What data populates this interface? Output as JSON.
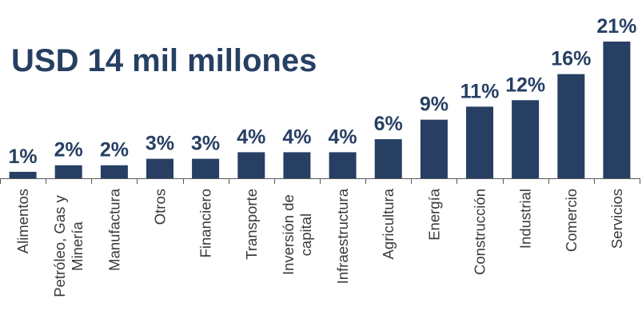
{
  "colors": {
    "bar": "#263f63",
    "title": "#263f63",
    "value_label": "#263f63",
    "axis": "#595959",
    "category_label": "#3a3a3a"
  },
  "chart_data": {
    "type": "bar",
    "title": "USD 14 mil millones",
    "xlabel": "",
    "ylabel": "",
    "ylim": [
      0,
      21
    ],
    "grid": false,
    "legend": "none",
    "categories": [
      "Alimentos",
      "Petróleo, Gas y Minería",
      "Manufactura",
      "Otros",
      "Financiero",
      "Transporte",
      "Inversión de capital",
      "Infraestructura",
      "Agricultura",
      "Energía",
      "Construcción",
      "Industrial",
      "Comercio",
      "Servicios"
    ],
    "category_lines": [
      [
        "Alimentos"
      ],
      [
        "Petróleo, Gas y",
        "Minería"
      ],
      [
        "Manufactura"
      ],
      [
        "Otros"
      ],
      [
        "Financiero"
      ],
      [
        "Transporte"
      ],
      [
        "Inversión de",
        "capital"
      ],
      [
        "Infraestructura"
      ],
      [
        "Agricultura"
      ],
      [
        "Energía"
      ],
      [
        "Construcción"
      ],
      [
        "Industrial"
      ],
      [
        "Comercio"
      ],
      [
        "Servicios"
      ]
    ],
    "values": [
      1,
      2,
      2,
      3,
      3,
      4,
      4,
      4,
      6,
      9,
      11,
      12,
      16,
      21
    ],
    "value_labels": [
      "1%",
      "2%",
      "2%",
      "3%",
      "3%",
      "4%",
      "4%",
      "4%",
      "6%",
      "9%",
      "11%",
      "12%",
      "16%",
      "21%"
    ]
  }
}
